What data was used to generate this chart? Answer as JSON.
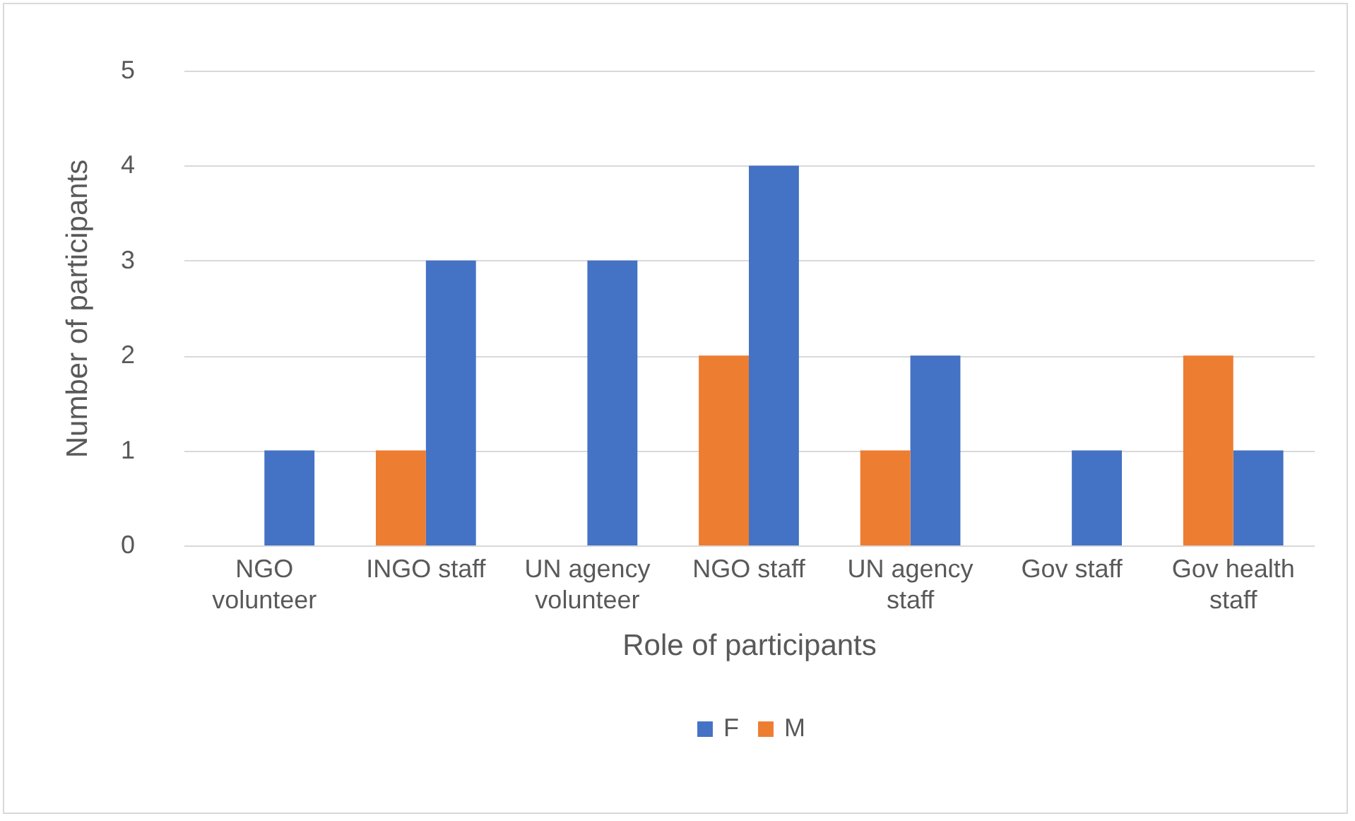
{
  "chart_data": {
    "type": "bar",
    "xlabel": "Role of participants",
    "ylabel": "Number of participants",
    "categories": [
      "NGO volunteer",
      "INGO staff",
      "UN agency volunteer",
      "NGO staff",
      "UN agency staff",
      "Gov staff",
      "Gov health staff"
    ],
    "series": [
      {
        "name": "F",
        "color": "#4472c4",
        "values": [
          1,
          3,
          3,
          4,
          2,
          1,
          1
        ]
      },
      {
        "name": "M",
        "color": "#ed7d31",
        "values": [
          0,
          1,
          0,
          2,
          1,
          0,
          2
        ]
      }
    ],
    "ylim": [
      0,
      5
    ],
    "yticks": [
      0,
      1,
      2,
      3,
      4,
      5
    ],
    "grid": "y",
    "legend": "bottom"
  }
}
